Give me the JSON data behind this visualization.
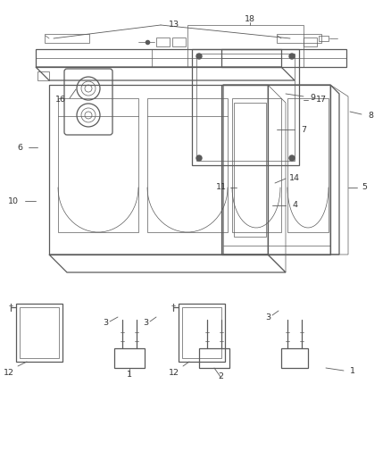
{
  "bg_color": "#ffffff",
  "line_color": "#5a5a5a",
  "label_color": "#333333",
  "fig_width": 4.38,
  "fig_height": 5.33,
  "dpi": 100
}
